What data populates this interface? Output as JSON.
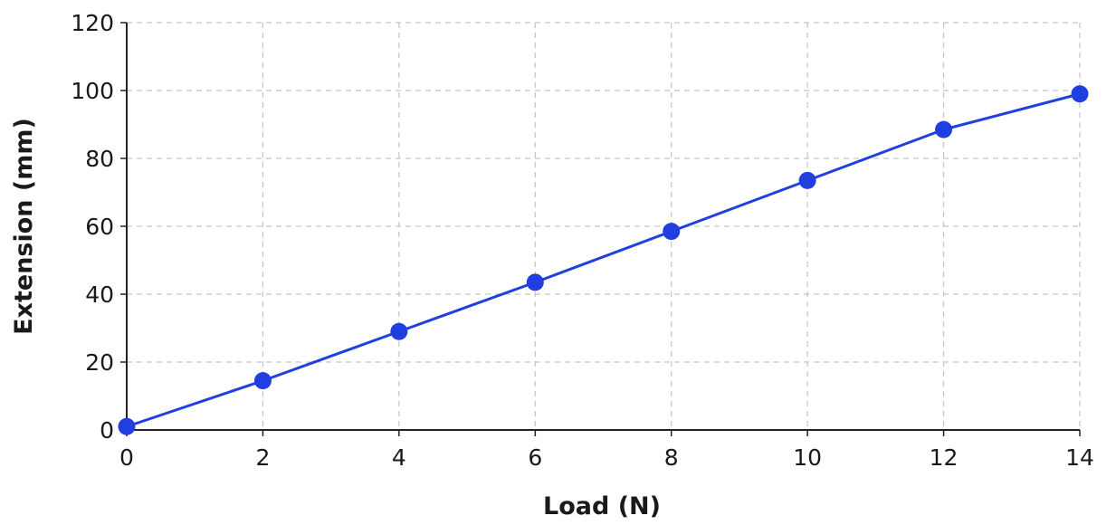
{
  "chart_data": {
    "type": "line",
    "title": "",
    "xlabel": "Load (N)",
    "ylabel": "Extension (mm)",
    "xlim": [
      0,
      14
    ],
    "ylim": [
      0,
      120
    ],
    "xticks": [
      0,
      2,
      4,
      6,
      8,
      10,
      12,
      14
    ],
    "yticks": [
      0,
      20,
      40,
      60,
      80,
      100,
      120
    ],
    "grid": true,
    "series": [
      {
        "color": "#1f3fe0",
        "x": [
          0,
          2,
          4,
          6,
          8,
          10,
          12,
          14
        ],
        "y": [
          1,
          14.5,
          29,
          43.5,
          58.5,
          73.5,
          88.5,
          99
        ]
      }
    ]
  }
}
